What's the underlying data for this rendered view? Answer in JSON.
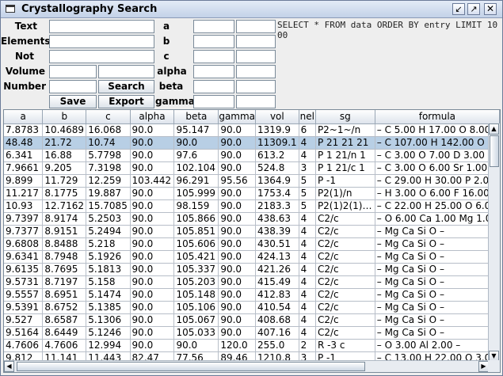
{
  "window": {
    "title": "Crystallography Search",
    "buttons": {
      "iconify": "↙",
      "maximize": "↗",
      "close": "✕"
    }
  },
  "form": {
    "labels": {
      "text": "Text",
      "elements": "Elements",
      "not": "Not",
      "volume": "Volume",
      "number": "Number",
      "a": "a",
      "b": "b",
      "c": "c",
      "alpha": "alpha",
      "beta": "beta",
      "gamma": "gamma"
    },
    "values": {
      "text": "",
      "elements": "",
      "not": "",
      "volume_min": "",
      "volume_max": "",
      "number": "",
      "a_min": "",
      "a_max": "",
      "b_min": "",
      "b_max": "",
      "c_min": "",
      "c_max": "",
      "alpha_min": "",
      "alpha_max": "",
      "beta_min": "",
      "beta_max": "",
      "gamma_min": "",
      "gamma_max": ""
    },
    "buttons": {
      "search": "Search",
      "save": "Save",
      "export": "Export"
    },
    "sql": "SELECT * FROM data ORDER BY entry LIMIT 1000"
  },
  "table": {
    "columns": [
      "a",
      "b",
      "c",
      "alpha",
      "beta",
      "gamma",
      "vol",
      "nel",
      "sg",
      "formula"
    ],
    "selected_row": 1,
    "rows": [
      [
        "7.8783",
        "10.4689",
        "16.068",
        "90.0",
        "95.147",
        "90.0",
        "1319.9",
        "6",
        "P2~1~/n",
        "– C 5.00 H 17.00 O 8.00 "
      ],
      [
        "48.48",
        "21.72",
        "10.74",
        "90.0",
        "90.0",
        "90.0",
        "11309.1",
        "4",
        "P 21 21 21",
        "– C 107.00 H 142.00 O "
      ],
      [
        "6.341",
        "16.88",
        "5.7798",
        "90.0",
        "97.6",
        "90.0",
        "613.2",
        "4",
        "P 1 21/n 1",
        "– C 3.00 O 7.00 D 3.00 "
      ],
      [
        "7.9661",
        "9.205",
        "7.3198",
        "90.0",
        "102.104",
        "90.0",
        "524.8",
        "3",
        "P 1 21/c 1",
        "– C 3.00 O 6.00 Sr 1.00 "
      ],
      [
        "9.899",
        "11.729",
        "12.259",
        "103.442",
        "96.291",
        "95.56",
        "1364.9",
        "5",
        "P -1",
        "– C 29.00 H 30.00 P 2.00"
      ],
      [
        "11.217",
        "8.1775",
        "19.887",
        "90.0",
        "105.999",
        "90.0",
        "1753.4",
        "5",
        "P2(1)/n",
        "– H 3.00 O 6.00 F 16.00 "
      ],
      [
        "10.93",
        "12.7162",
        "15.7085",
        "90.0",
        "98.159",
        "90.0",
        "2183.3",
        "5",
        "P2(1)2(1)…",
        "– C 22.00 H 25.00 O 6.0"
      ],
      [
        "9.7397",
        "8.9174",
        "5.2503",
        "90.0",
        "105.866",
        "90.0",
        "438.63",
        "4",
        "C2/c",
        "– O 6.00 Ca 1.00 Mg 1.0"
      ],
      [
        "9.7377",
        "8.9151",
        "5.2494",
        "90.0",
        "105.851",
        "90.0",
        "438.39",
        "4",
        "C2/c",
        "– Mg Ca Si O –"
      ],
      [
        "9.6808",
        "8.8488",
        "5.218",
        "90.0",
        "105.606",
        "90.0",
        "430.51",
        "4",
        "C2/c",
        "– Mg Ca Si O –"
      ],
      [
        "9.6341",
        "8.7948",
        "5.1926",
        "90.0",
        "105.421",
        "90.0",
        "424.13",
        "4",
        "C2/c",
        "– Mg Ca Si O –"
      ],
      [
        "9.6135",
        "8.7695",
        "5.1813",
        "90.0",
        "105.337",
        "90.0",
        "421.26",
        "4",
        "C2/c",
        "– Mg Ca Si O –"
      ],
      [
        "9.5731",
        "8.7197",
        "5.158",
        "90.0",
        "105.203",
        "90.0",
        "415.49",
        "4",
        "C2/c",
        "– Mg Ca Si O –"
      ],
      [
        "9.5557",
        "8.6951",
        "5.1474",
        "90.0",
        "105.148",
        "90.0",
        "412.83",
        "4",
        "C2/c",
        "– Mg Ca Si O –"
      ],
      [
        "9.5391",
        "8.6752",
        "5.1385",
        "90.0",
        "105.106",
        "90.0",
        "410.54",
        "4",
        "C2/c",
        "– Mg Ca Si O –"
      ],
      [
        "9.527",
        "8.6587",
        "5.1306",
        "90.0",
        "105.067",
        "90.0",
        "408.68",
        "4",
        "C2/c",
        "– Mg Ca Si O –"
      ],
      [
        "9.5164",
        "8.6449",
        "5.1246",
        "90.0",
        "105.033",
        "90.0",
        "407.16",
        "4",
        "C2/c",
        "– Mg Ca Si O –"
      ],
      [
        "4.7606",
        "4.7606",
        "12.994",
        "90.0",
        "90.0",
        "120.0",
        "255.0",
        "2",
        "R -3 c",
        "– O 3.00 Al 2.00 –"
      ],
      [
        "9.812",
        "11.141",
        "11.443",
        "82.47",
        "77.56",
        "89.46",
        "1210.8",
        "3",
        "P -1",
        "– C 13.00 H 22.00 O 3.0"
      ]
    ]
  }
}
